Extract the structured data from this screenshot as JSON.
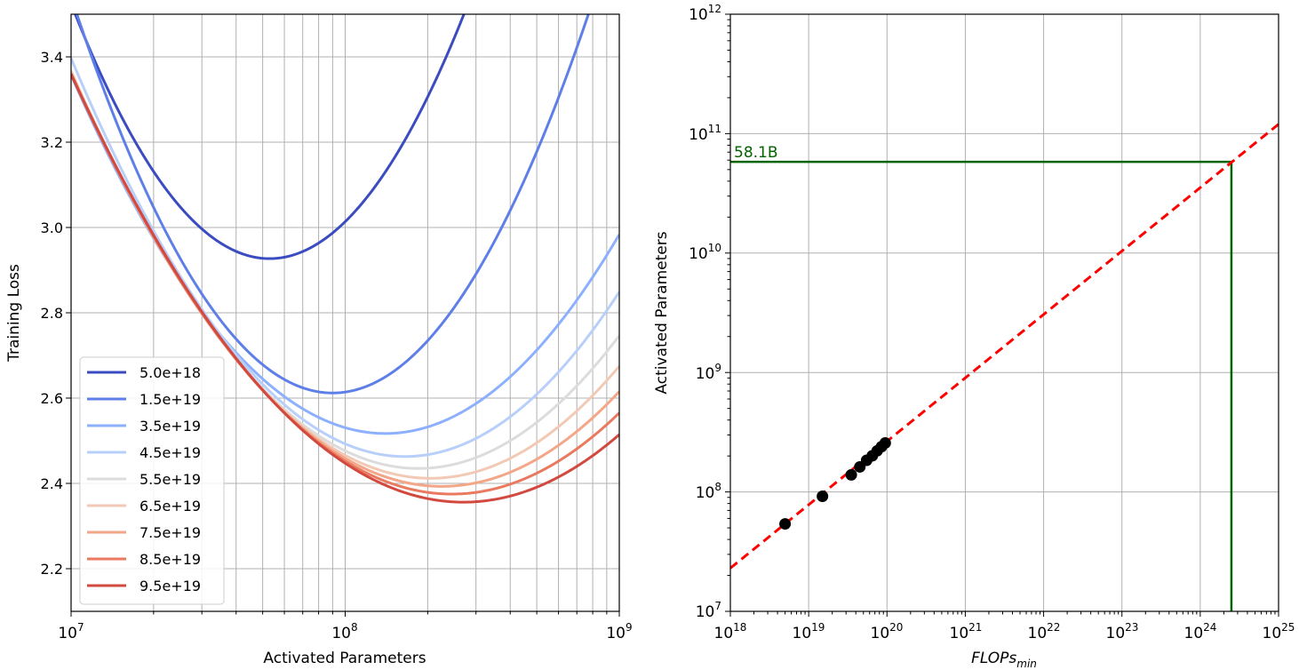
{
  "chart_data": [
    {
      "type": "line",
      "xlabel": "Activated Parameters",
      "ylabel": "Training Loss",
      "xscale": "log",
      "xlim": [
        10000000,
        1000000000
      ],
      "ylim": [
        2.1,
        3.5
      ],
      "grid": true,
      "legend_position": "bottom-left",
      "x_tick_labels": [
        {
          "base": "10",
          "exp": "7"
        },
        {
          "base": "10",
          "exp": "8"
        },
        {
          "base": "10",
          "exp": "9"
        }
      ],
      "y_tick_labels": [
        "2.2",
        "2.4",
        "2.6",
        "2.8",
        "3.0",
        "3.2",
        "3.4"
      ],
      "series": [
        {
          "name": "5.0e+18",
          "color": "#3b4cc0",
          "min_params": 53000000,
          "min_loss": 2.927,
          "curvature": 1.14
        },
        {
          "name": "1.5e+19",
          "color": "#5f7fe8",
          "min_params": 90000000,
          "min_loss": 2.612,
          "curvature": 1.02
        },
        {
          "name": "3.5e+19",
          "color": "#8db0fe",
          "min_params": 140000000,
          "min_loss": 2.517,
          "curvature": 0.64
        },
        {
          "name": "4.5e+19",
          "color": "#b7cff9",
          "min_params": 165000000,
          "min_loss": 2.463,
          "curvature": 0.63
        },
        {
          "name": "5.5e+19",
          "color": "#dddcdc",
          "min_params": 185000000,
          "min_loss": 2.435,
          "curvature": 0.58
        },
        {
          "name": "6.5e+19",
          "color": "#f2c9b4",
          "min_params": 205000000,
          "min_loss": 2.412,
          "curvature": 0.555
        },
        {
          "name": "7.5e+19",
          "color": "#f4a688",
          "min_params": 225000000,
          "min_loss": 2.393,
          "curvature": 0.53
        },
        {
          "name": "8.5e+19",
          "color": "#e97a60",
          "min_params": 245000000,
          "min_loss": 2.375,
          "curvature": 0.51
        },
        {
          "name": "9.5e+19",
          "color": "#d1493f",
          "min_params": 270000000,
          "min_loss": 2.356,
          "curvature": 0.49
        }
      ]
    },
    {
      "type": "scatter",
      "xlabel": {
        "main": "FLOPs",
        "sub": "min"
      },
      "ylabel": "Activated Parameters",
      "xscale": "log",
      "yscale": "log",
      "xlim": [
        1e+18,
        1e+25
      ],
      "ylim": [
        10000000,
        1000000000000
      ],
      "grid": true,
      "x_tick_labels": [
        {
          "base": "10",
          "exp": "18"
        },
        {
          "base": "10",
          "exp": "19"
        },
        {
          "base": "10",
          "exp": "20"
        },
        {
          "base": "10",
          "exp": "21"
        },
        {
          "base": "10",
          "exp": "22"
        },
        {
          "base": "10",
          "exp": "23"
        },
        {
          "base": "10",
          "exp": "24"
        },
        {
          "base": "10",
          "exp": "25"
        }
      ],
      "y_tick_labels": [
        {
          "base": "10",
          "exp": "7"
        },
        {
          "base": "10",
          "exp": "8"
        },
        {
          "base": "10",
          "exp": "9"
        },
        {
          "base": "10",
          "exp": "10"
        },
        {
          "base": "10",
          "exp": "11"
        },
        {
          "base": "10",
          "exp": "12"
        }
      ],
      "points": [
        {
          "x": 5e+18,
          "y": 54000000
        },
        {
          "x": 1.5e+19,
          "y": 92000000
        },
        {
          "x": 3.5e+19,
          "y": 139000000
        },
        {
          "x": 4.5e+19,
          "y": 162000000
        },
        {
          "x": 5.5e+19,
          "y": 184000000
        },
        {
          "x": 6.5e+19,
          "y": 201000000
        },
        {
          "x": 7.5e+19,
          "y": 221000000
        },
        {
          "x": 8.5e+19,
          "y": 239000000
        },
        {
          "x": 9.5e+19,
          "y": 257000000
        }
      ],
      "fit_line": {
        "color": "#ff0000",
        "style": "dashed",
        "x": [
          1e+18,
          1e+25
        ],
        "y": [
          23000000,
          120000000000
        ]
      },
      "projection": {
        "color": "#006400",
        "x": 2.5e+24,
        "y": 58100000000,
        "label": "58.1B"
      },
      "point_color": "#000000"
    }
  ]
}
